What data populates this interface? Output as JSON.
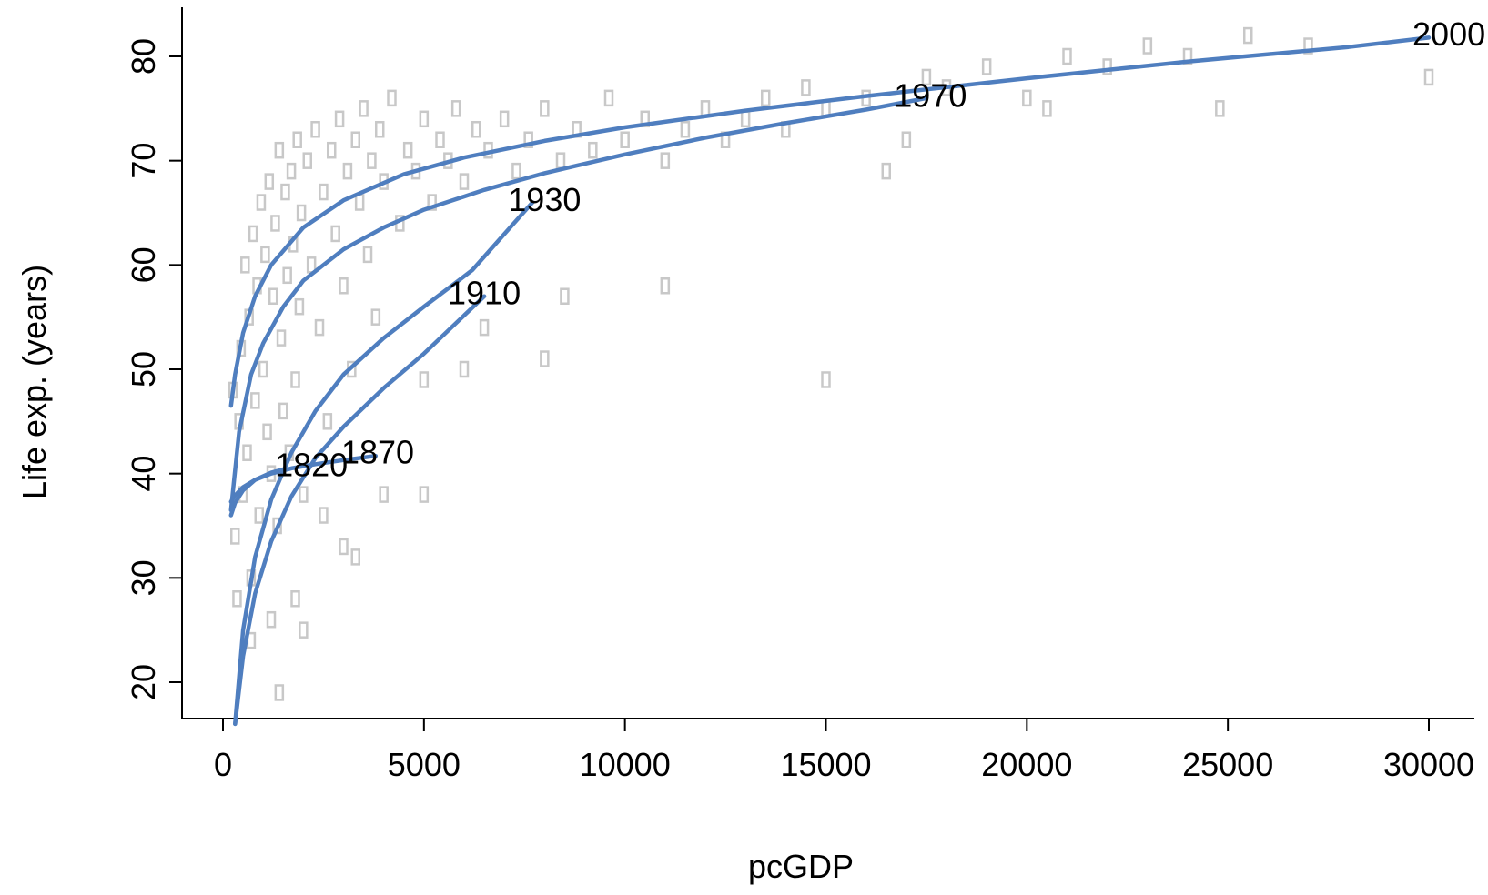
{
  "chart_data": {
    "type": "scatter",
    "title": "",
    "xlabel": "pcGDP",
    "ylabel": "Life exp. (years)",
    "xlim": [
      0,
      31500
    ],
    "ylim": [
      16,
      84
    ],
    "x_ticks": [
      0,
      5000,
      10000,
      15000,
      20000,
      25000,
      30000
    ],
    "y_ticks": [
      20,
      30,
      40,
      50,
      60,
      70,
      80
    ],
    "grid": false,
    "point_color": "#c8c8c8",
    "curve_color": "#4f7ebf",
    "points": [
      [
        250,
        48
      ],
      [
        300,
        34
      ],
      [
        350,
        28
      ],
      [
        400,
        45
      ],
      [
        450,
        52
      ],
      [
        500,
        38
      ],
      [
        550,
        60
      ],
      [
        600,
        42
      ],
      [
        650,
        55
      ],
      [
        700,
        30
      ],
      [
        750,
        63
      ],
      [
        800,
        47
      ],
      [
        850,
        58
      ],
      [
        900,
        36
      ],
      [
        950,
        66
      ],
      [
        1000,
        50
      ],
      [
        1050,
        61
      ],
      [
        1100,
        44
      ],
      [
        1150,
        68
      ],
      [
        1200,
        40
      ],
      [
        1250,
        57
      ],
      [
        1300,
        64
      ],
      [
        1350,
        35
      ],
      [
        1400,
        71
      ],
      [
        1450,
        53
      ],
      [
        1500,
        46
      ],
      [
        1550,
        67
      ],
      [
        1600,
        59
      ],
      [
        1650,
        42
      ],
      [
        1700,
        69
      ],
      [
        1750,
        62
      ],
      [
        1800,
        49
      ],
      [
        1850,
        72
      ],
      [
        1900,
        56
      ],
      [
        1950,
        65
      ],
      [
        2000,
        38
      ],
      [
        2100,
        70
      ],
      [
        2200,
        60
      ],
      [
        2300,
        73
      ],
      [
        2400,
        54
      ],
      [
        2500,
        67
      ],
      [
        2600,
        45
      ],
      [
        2700,
        71
      ],
      [
        2800,
        63
      ],
      [
        2900,
        74
      ],
      [
        3000,
        58
      ],
      [
        3100,
        69
      ],
      [
        3200,
        50
      ],
      [
        3300,
        72
      ],
      [
        3400,
        66
      ],
      [
        3500,
        75
      ],
      [
        3600,
        61
      ],
      [
        3700,
        70
      ],
      [
        3800,
        55
      ],
      [
        3900,
        73
      ],
      [
        4000,
        68
      ],
      [
        4200,
        76
      ],
      [
        4400,
        64
      ],
      [
        4600,
        71
      ],
      [
        4800,
        69
      ],
      [
        5000,
        74
      ],
      [
        5200,
        66
      ],
      [
        5400,
        72
      ],
      [
        5600,
        70
      ],
      [
        5800,
        75
      ],
      [
        6000,
        68
      ],
      [
        6300,
        73
      ],
      [
        6600,
        71
      ],
      [
        7000,
        74
      ],
      [
        7300,
        69
      ],
      [
        7600,
        72
      ],
      [
        8000,
        75
      ],
      [
        8400,
        70
      ],
      [
        8800,
        73
      ],
      [
        9200,
        71
      ],
      [
        9600,
        76
      ],
      [
        10000,
        72
      ],
      [
        10500,
        74
      ],
      [
        11000,
        70
      ],
      [
        11500,
        73
      ],
      [
        12000,
        75
      ],
      [
        12500,
        72
      ],
      [
        13000,
        74
      ],
      [
        13500,
        76
      ],
      [
        14000,
        73
      ],
      [
        14500,
        77
      ],
      [
        15000,
        75
      ],
      [
        16000,
        76
      ],
      [
        16500,
        69
      ],
      [
        17000,
        72
      ],
      [
        17500,
        78
      ],
      [
        18000,
        77
      ],
      [
        19000,
        79
      ],
      [
        20000,
        76
      ],
      [
        20500,
        75
      ],
      [
        21000,
        80
      ],
      [
        22000,
        79
      ],
      [
        23000,
        81
      ],
      [
        24000,
        80
      ],
      [
        24800,
        75
      ],
      [
        25500,
        82
      ],
      [
        27000,
        81
      ],
      [
        30000,
        78
      ],
      [
        1400,
        19
      ],
      [
        5000,
        49
      ],
      [
        15000,
        49
      ],
      [
        3300,
        32
      ],
      [
        2000,
        25
      ],
      [
        1800,
        28
      ],
      [
        8000,
        51
      ],
      [
        6000,
        50
      ],
      [
        11000,
        58
      ],
      [
        8500,
        57
      ],
      [
        6500,
        54
      ],
      [
        4000,
        38
      ],
      [
        5000,
        38
      ],
      [
        3000,
        33
      ],
      [
        2500,
        36
      ],
      [
        1200,
        26
      ],
      [
        700,
        24
      ]
    ],
    "series": [
      {
        "name": "1820",
        "x": [
          200,
          300,
          500,
          800,
          1200,
          1500
        ],
        "y": [
          36,
          37.2,
          38.4,
          39.4,
          40.1,
          40.4
        ]
      },
      {
        "name": "1870",
        "x": [
          200,
          300,
          500,
          800,
          1200,
          1700,
          2300,
          3000,
          3800
        ],
        "y": [
          37.3,
          37.9,
          38.7,
          39.4,
          40.0,
          40.5,
          40.9,
          41.3,
          41.7
        ]
      },
      {
        "name": "1910",
        "x": [
          300,
          500,
          800,
          1200,
          1700,
          2300,
          3000,
          4000,
          5000,
          6500
        ],
        "y": [
          16,
          22.5,
          28.5,
          33.5,
          37.8,
          41.5,
          44.5,
          48.2,
          51.5,
          57
        ]
      },
      {
        "name": "1930",
        "x": [
          300,
          500,
          800,
          1200,
          1700,
          2300,
          3000,
          4000,
          5000,
          6200,
          7700
        ],
        "y": [
          16,
          25,
          32,
          37.5,
          42,
          46,
          49.5,
          53,
          56,
          59.5,
          66
        ]
      },
      {
        "name": "1970",
        "x": [
          200,
          400,
          700,
          1000,
          1500,
          2000,
          3000,
          4000,
          5000,
          6500,
          8000,
          10000,
          12000,
          14000,
          16000,
          17500
        ],
        "y": [
          36.5,
          44,
          49.5,
          52.5,
          56,
          58.5,
          61.5,
          63.6,
          65.3,
          67.2,
          68.8,
          70.6,
          72.2,
          73.6,
          74.9,
          76
        ]
      },
      {
        "name": "2000",
        "x": [
          200,
          300,
          500,
          800,
          1200,
          2000,
          3000,
          4500,
          6000,
          8000,
          10000,
          13000,
          16000,
          20000,
          24000,
          28000,
          30000
        ],
        "y": [
          46.5,
          49.5,
          53.5,
          57,
          60,
          63.6,
          66.2,
          68.7,
          70.3,
          71.9,
          73.2,
          74.8,
          76.2,
          77.9,
          79.5,
          80.9,
          81.8
        ]
      }
    ],
    "series_labels": [
      {
        "text": "1820",
        "x": 2200,
        "y": 40.8
      },
      {
        "text": "1870",
        "x": 3850,
        "y": 42.0
      },
      {
        "text": "1910",
        "x": 6500,
        "y": 57.3
      },
      {
        "text": "1930",
        "x": 8000,
        "y": 66.2
      },
      {
        "text": "1970",
        "x": 17600,
        "y": 76.2
      },
      {
        "text": "2000",
        "x": 30500,
        "y": 82.1
      }
    ]
  }
}
